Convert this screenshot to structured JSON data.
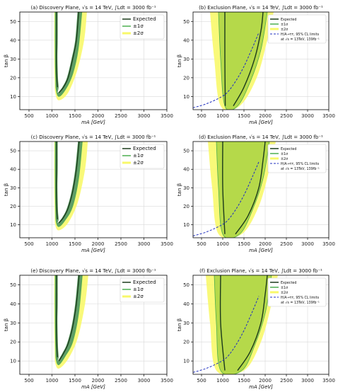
{
  "chart_data": [
    {
      "type": "contour",
      "panel": "a",
      "title": "(a) Discovery Plane, √s = 14 TeV, ∫Ldt = 3000 fb⁻¹",
      "xlabel": "mA [GeV]",
      "ylabel": "tan β",
      "xlim": [
        300,
        3500
      ],
      "ylim": [
        3,
        55
      ],
      "xticks": [
        500,
        1000,
        1500,
        2000,
        2500,
        3000,
        3500
      ],
      "yticks": [
        10,
        20,
        30,
        40,
        50
      ],
      "grid": true,
      "legend": {
        "position": "top-right",
        "entries": [
          "Expected",
          "±1σ",
          "±2σ"
        ]
      },
      "expected_left": [
        [
          1100,
          55
        ],
        [
          1100,
          40
        ],
        [
          1095,
          30
        ],
        [
          1105,
          20
        ],
        [
          1120,
          15
        ]
      ],
      "expected_right": [
        [
          1150,
          12
        ],
        [
          1250,
          15
        ],
        [
          1350,
          20
        ],
        [
          1450,
          30
        ],
        [
          1530,
          40
        ],
        [
          1580,
          55
        ]
      ],
      "band1_left": [
        [
          1070,
          55
        ],
        [
          1070,
          30
        ],
        [
          1080,
          20
        ],
        [
          1090,
          14
        ]
      ],
      "band1_right": [
        [
          1150,
          10
        ],
        [
          1300,
          14
        ],
        [
          1450,
          22
        ],
        [
          1570,
          35
        ],
        [
          1650,
          55
        ]
      ],
      "band2_left": [
        [
          1050,
          55
        ],
        [
          1050,
          30
        ],
        [
          1060,
          18
        ],
        [
          1070,
          12
        ]
      ],
      "band2_right": [
        [
          1150,
          8
        ],
        [
          1350,
          12
        ],
        [
          1550,
          24
        ],
        [
          1700,
          40
        ],
        [
          1760,
          55
        ]
      ]
    },
    {
      "type": "contour",
      "panel": "b",
      "title": "(b) Exclusion Plane, √s = 14 TeV, ∫Ldt = 3000 fb⁻¹",
      "xlabel": "mA [GeV]",
      "ylabel": "tan β",
      "xlim": [
        300,
        3500
      ],
      "ylim": [
        3,
        55
      ],
      "xticks": [
        500,
        1000,
        1500,
        2000,
        2500,
        3000,
        3500
      ],
      "yticks": [
        10,
        20,
        30,
        40,
        50
      ],
      "grid": true,
      "legend": {
        "position": "top-right",
        "entries": [
          "Expected",
          "±1σ",
          "±2σ",
          "H/A→ττ, 95% CL limits",
          "at √s = 13TeV, 139fb⁻¹"
        ]
      },
      "reference_line": [
        [
          300,
          4
        ],
        [
          600,
          6
        ],
        [
          900,
          9
        ],
        [
          1100,
          12
        ],
        [
          1300,
          18
        ],
        [
          1500,
          26
        ],
        [
          1700,
          36
        ],
        [
          1850,
          44
        ]
      ],
      "expected_left": [
        [
          1050,
          55
        ],
        [
          1050,
          30
        ],
        [
          1060,
          5
        ]
      ],
      "expected_right": [
        [
          1250,
          5
        ],
        [
          1500,
          15
        ],
        [
          1750,
          30
        ],
        [
          1900,
          45
        ],
        [
          1950,
          55
        ]
      ],
      "band1_left": [
        [
          900,
          55
        ],
        [
          950,
          30
        ],
        [
          1050,
          5
        ]
      ],
      "band1_right": [
        [
          1350,
          5
        ],
        [
          1650,
          18
        ],
        [
          1900,
          35
        ],
        [
          2050,
          55
        ]
      ],
      "band2_left": [
        [
          700,
          55
        ],
        [
          800,
          30
        ],
        [
          950,
          5
        ]
      ],
      "band2_right": [
        [
          1400,
          5
        ],
        [
          1800,
          20
        ],
        [
          2050,
          40
        ],
        [
          2200,
          55
        ]
      ]
    },
    {
      "type": "contour",
      "panel": "c",
      "title": "(c) Discovery Plane, √s = 14 TeV, ∫Ldt = 3000 fb⁻¹",
      "xlabel": "mA [GeV]",
      "ylabel": "tan β",
      "xlim": [
        300,
        3500
      ],
      "ylim": [
        3,
        55
      ],
      "xticks": [
        500,
        1000,
        1500,
        2000,
        2500,
        3000,
        3500
      ],
      "yticks": [
        10,
        20,
        30,
        40,
        50
      ],
      "grid": true,
      "legend": {
        "position": "top-right",
        "entries": [
          "Expected",
          "±1σ",
          "±2σ"
        ]
      },
      "expected_left": [
        [
          1100,
          55
        ],
        [
          1100,
          40
        ],
        [
          1095,
          30
        ],
        [
          1105,
          18
        ],
        [
          1120,
          13
        ]
      ],
      "expected_right": [
        [
          1150,
          11
        ],
        [
          1250,
          14
        ],
        [
          1350,
          19
        ],
        [
          1450,
          28
        ],
        [
          1530,
          40
        ],
        [
          1590,
          55
        ]
      ],
      "band1_left": [
        [
          1070,
          55
        ],
        [
          1070,
          30
        ],
        [
          1080,
          18
        ],
        [
          1090,
          12
        ]
      ],
      "band1_right": [
        [
          1150,
          9
        ],
        [
          1300,
          13
        ],
        [
          1450,
          20
        ],
        [
          1580,
          35
        ],
        [
          1660,
          55
        ]
      ],
      "band2_left": [
        [
          1050,
          55
        ],
        [
          1050,
          30
        ],
        [
          1060,
          16
        ],
        [
          1070,
          10
        ]
      ],
      "band2_right": [
        [
          1150,
          7
        ],
        [
          1350,
          11
        ],
        [
          1560,
          22
        ],
        [
          1720,
          40
        ],
        [
          1780,
          55
        ]
      ]
    },
    {
      "type": "contour",
      "panel": "d",
      "title": "(d) Exclusion Plane, √s = 14 TeV, ∫Ldt = 3000 fb⁻¹",
      "xlabel": "mA [GeV]",
      "ylabel": "tan β",
      "xlim": [
        300,
        3500
      ],
      "ylim": [
        3,
        55
      ],
      "xticks": [
        500,
        1000,
        1500,
        2000,
        2500,
        3000,
        3500
      ],
      "yticks": [
        10,
        20,
        30,
        40,
        50
      ],
      "grid": true,
      "legend": {
        "position": "top-right",
        "entries": [
          "Expected",
          "±1σ",
          "±2σ",
          "H/A→ττ, 95% CL limits",
          "at √s = 13TeV, 139fb⁻¹"
        ]
      },
      "reference_line": [
        [
          300,
          4
        ],
        [
          600,
          6
        ],
        [
          900,
          9
        ],
        [
          1100,
          12
        ],
        [
          1300,
          18
        ],
        [
          1500,
          26
        ],
        [
          1700,
          36
        ],
        [
          1850,
          44
        ]
      ],
      "expected_left": [
        [
          1000,
          55
        ],
        [
          1000,
          30
        ],
        [
          1050,
          5
        ]
      ],
      "expected_right": [
        [
          1300,
          5
        ],
        [
          1600,
          15
        ],
        [
          1850,
          30
        ],
        [
          1950,
          45
        ],
        [
          2000,
          55
        ]
      ],
      "band1_left": [
        [
          850,
          55
        ],
        [
          900,
          30
        ],
        [
          1000,
          5
        ]
      ],
      "band1_right": [
        [
          1400,
          5
        ],
        [
          1700,
          18
        ],
        [
          1950,
          35
        ],
        [
          2100,
          55
        ]
      ],
      "band2_left": [
        [
          650,
          55
        ],
        [
          750,
          30
        ],
        [
          900,
          5
        ]
      ],
      "band2_right": [
        [
          1450,
          5
        ],
        [
          1850,
          20
        ],
        [
          2100,
          40
        ],
        [
          2250,
          55
        ]
      ]
    },
    {
      "type": "contour",
      "panel": "e",
      "title": "(e) Discovery Plane, √s = 14 TeV, ∫Ldt = 3000 fb⁻¹",
      "xlabel": "mA [GeV]",
      "ylabel": "tan β",
      "xlim": [
        300,
        3500
      ],
      "ylim": [
        3,
        55
      ],
      "xticks": [
        500,
        1000,
        1500,
        2000,
        2500,
        3000,
        3500
      ],
      "yticks": [
        10,
        20,
        30,
        40,
        50
      ],
      "grid": true,
      "legend": {
        "position": "top-right",
        "entries": [
          "Expected",
          "±1σ",
          "±2σ"
        ]
      },
      "expected_left": [
        [
          1100,
          55
        ],
        [
          1100,
          40
        ],
        [
          1095,
          30
        ],
        [
          1105,
          18
        ],
        [
          1120,
          12
        ]
      ],
      "expected_right": [
        [
          1150,
          10
        ],
        [
          1250,
          14
        ],
        [
          1350,
          19
        ],
        [
          1450,
          28
        ],
        [
          1530,
          40
        ],
        [
          1590,
          55
        ]
      ],
      "band1_left": [
        [
          1070,
          55
        ],
        [
          1070,
          30
        ],
        [
          1080,
          17
        ],
        [
          1090,
          11
        ]
      ],
      "band1_right": [
        [
          1150,
          8
        ],
        [
          1300,
          13
        ],
        [
          1450,
          20
        ],
        [
          1580,
          35
        ],
        [
          1660,
          55
        ]
      ],
      "band2_left": [
        [
          1050,
          55
        ],
        [
          1050,
          30
        ],
        [
          1060,
          15
        ],
        [
          1070,
          9
        ]
      ],
      "band2_right": [
        [
          1150,
          6
        ],
        [
          1350,
          11
        ],
        [
          1560,
          22
        ],
        [
          1720,
          40
        ],
        [
          1790,
          55
        ]
      ]
    },
    {
      "type": "contour",
      "panel": "f",
      "title": "(f) Exclusion Plane, √s = 14 TeV, ∫Ldt = 3000 fb⁻¹",
      "xlabel": "mA [GeV]",
      "ylabel": "tan β",
      "xlim": [
        300,
        3500
      ],
      "ylim": [
        3,
        55
      ],
      "xticks": [
        500,
        1000,
        1500,
        2000,
        2500,
        3000,
        3500
      ],
      "yticks": [
        10,
        20,
        30,
        40,
        50
      ],
      "grid": true,
      "legend": {
        "position": "top-right",
        "entries": [
          "Expected",
          "±1σ",
          "±2σ",
          "H/A→ττ, 95% CL limits",
          "at √s = 13TeV, 139fb⁻¹"
        ]
      },
      "reference_line": [
        [
          300,
          4
        ],
        [
          600,
          6
        ],
        [
          900,
          9
        ],
        [
          1100,
          12
        ],
        [
          1300,
          18
        ],
        [
          1500,
          26
        ],
        [
          1700,
          36
        ],
        [
          1850,
          44
        ]
      ],
      "expected_left": [
        [
          950,
          55
        ],
        [
          950,
          30
        ],
        [
          1050,
          5
        ]
      ],
      "expected_right": [
        [
          1350,
          5
        ],
        [
          1650,
          15
        ],
        [
          1900,
          30
        ],
        [
          2000,
          45
        ],
        [
          2050,
          55
        ]
      ],
      "band1_left": [
        [
          800,
          55
        ],
        [
          850,
          30
        ],
        [
          950,
          5
        ]
      ],
      "band1_right": [
        [
          1450,
          5
        ],
        [
          1750,
          18
        ],
        [
          2000,
          35
        ],
        [
          2150,
          55
        ]
      ],
      "band2_left": [
        [
          600,
          55
        ],
        [
          700,
          30
        ],
        [
          850,
          5
        ]
      ],
      "band2_right": [
        [
          1500,
          5
        ],
        [
          1900,
          20
        ],
        [
          2150,
          40
        ],
        [
          2300,
          55
        ]
      ]
    }
  ],
  "colors": {
    "expected": "#1b3a1b",
    "sigma1": "#4caf50",
    "sigma2": "#f8f86a",
    "discovery_fill": "#5e9e66",
    "exclusion_fill": "#b5d94a",
    "reference": "#1f2fbf",
    "grid": "#d9d9d9"
  }
}
